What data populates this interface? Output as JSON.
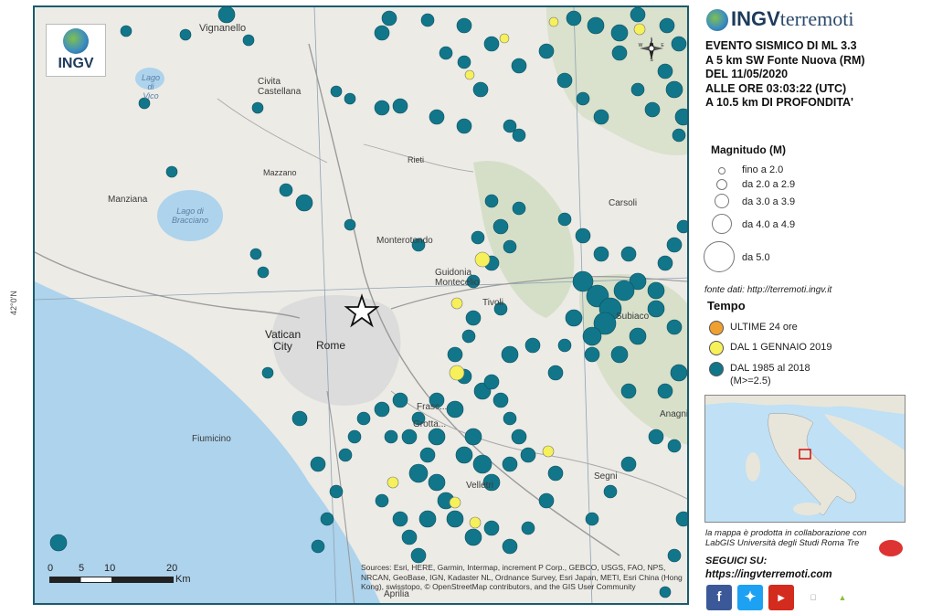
{
  "map": {
    "labels": [
      {
        "name": "vignanello",
        "text": "Vignanello"
      },
      {
        "name": "lago-vico",
        "text": "Lago\ndi Vico"
      },
      {
        "name": "civita-castellana",
        "text": "Civita\nCastellana"
      },
      {
        "name": "manziana",
        "text": "Manziana"
      },
      {
        "name": "lago-bracciano",
        "text": "Lago di\nBracciano"
      },
      {
        "name": "monterotondo",
        "text": "Monterotondo"
      },
      {
        "name": "guidonia-montecelio",
        "text": "Guidonia\nMontecelio"
      },
      {
        "name": "tivoli",
        "text": "Tivoli"
      },
      {
        "name": "vatican-city",
        "text": "Vatican\nCity"
      },
      {
        "name": "rome",
        "text": "Rome"
      },
      {
        "name": "fiumicino",
        "text": "Fiumicino"
      },
      {
        "name": "frascati",
        "text": "Frasc..."
      },
      {
        "name": "grottaferrata",
        "text": "Grotta..."
      },
      {
        "name": "velletri",
        "text": "Velletri"
      },
      {
        "name": "aprilia",
        "text": "Aprilia"
      },
      {
        "name": "subiaco",
        "text": "Subiaco"
      },
      {
        "name": "carsoli",
        "text": "Carsoli"
      },
      {
        "name": "anagni",
        "text": "Anagni"
      },
      {
        "name": "segni",
        "text": "Segni"
      },
      {
        "name": "rieti-road",
        "text": "Rieti"
      },
      {
        "name": "mazzano",
        "text": "Mazzano"
      }
    ],
    "coords": {
      "lat_label": "42°0'N"
    },
    "compass_letters": {
      "n": "N",
      "s": "S",
      "e": "E",
      "w": "W"
    },
    "scale": {
      "ticks": [
        "0",
        "5",
        "10",
        "20"
      ],
      "unit": "Km"
    },
    "sources": "Sources: Esri, HERE, Garmin, Intermap, increment P Corp., GEBCO, USGS, FAO, NPS, NRCAN, GeoBase, IGN, Kadaster NL, Ordnance Survey, Esri Japan, METI, Esri China (Hong Kong), swisstopo, © OpenStreetMap contributors, and the GIS User Community",
    "logo_text": "INGV",
    "epicenter_symbol": "star"
  },
  "brand": {
    "name": "INGV",
    "sub": "terremoti"
  },
  "event": {
    "line1": "EVENTO SISMICO DI ML 3.3",
    "line2": "A 5 km SW Fonte Nuova (RM)",
    "line3": "DEL 11/05/2020",
    "line4": "ALLE ORE 03:03:22 (UTC)",
    "line5": "A 10.5 km DI PROFONDITA'"
  },
  "legend": {
    "magnitude_title": "Magnitudo (M)",
    "magnitude_classes": [
      {
        "label": "fino a 2.0"
      },
      {
        "label": "da 2.0 a 2.9"
      },
      {
        "label": "da 3.0 a 3.9"
      },
      {
        "label": "da 4.0 a 4.9"
      },
      {
        "label": "da 5.0"
      }
    ],
    "source": "fonte dati: http://terremoti.ingv.it",
    "time_title": "Tempo",
    "time_classes": [
      {
        "label": "ULTIME 24 ore",
        "color": "#f0a030"
      },
      {
        "label": "DAL 1 GENNAIO 2019",
        "color": "#f6f05a"
      },
      {
        "label": "DAL 1985 al 2018",
        "sublabel": "(M>=2.5)",
        "color": "#12768a"
      }
    ]
  },
  "colors": {
    "historic": "#12768a",
    "recent": "#f6f05a",
    "last24": "#f0a030",
    "frame": "#1a5b6d",
    "water": "#aed3ec"
  },
  "collab": {
    "text": "la mappa è prodotta in collaborazione con",
    "org": "LabGIS Università degli Studi Roma Tre"
  },
  "social": {
    "title": "SEGUICI SU:",
    "url": "https://ingvterremoti.com",
    "icons": [
      "facebook-icon",
      "twitter-icon",
      "youtube-icon",
      "ios-icon",
      "android-icon"
    ]
  }
}
